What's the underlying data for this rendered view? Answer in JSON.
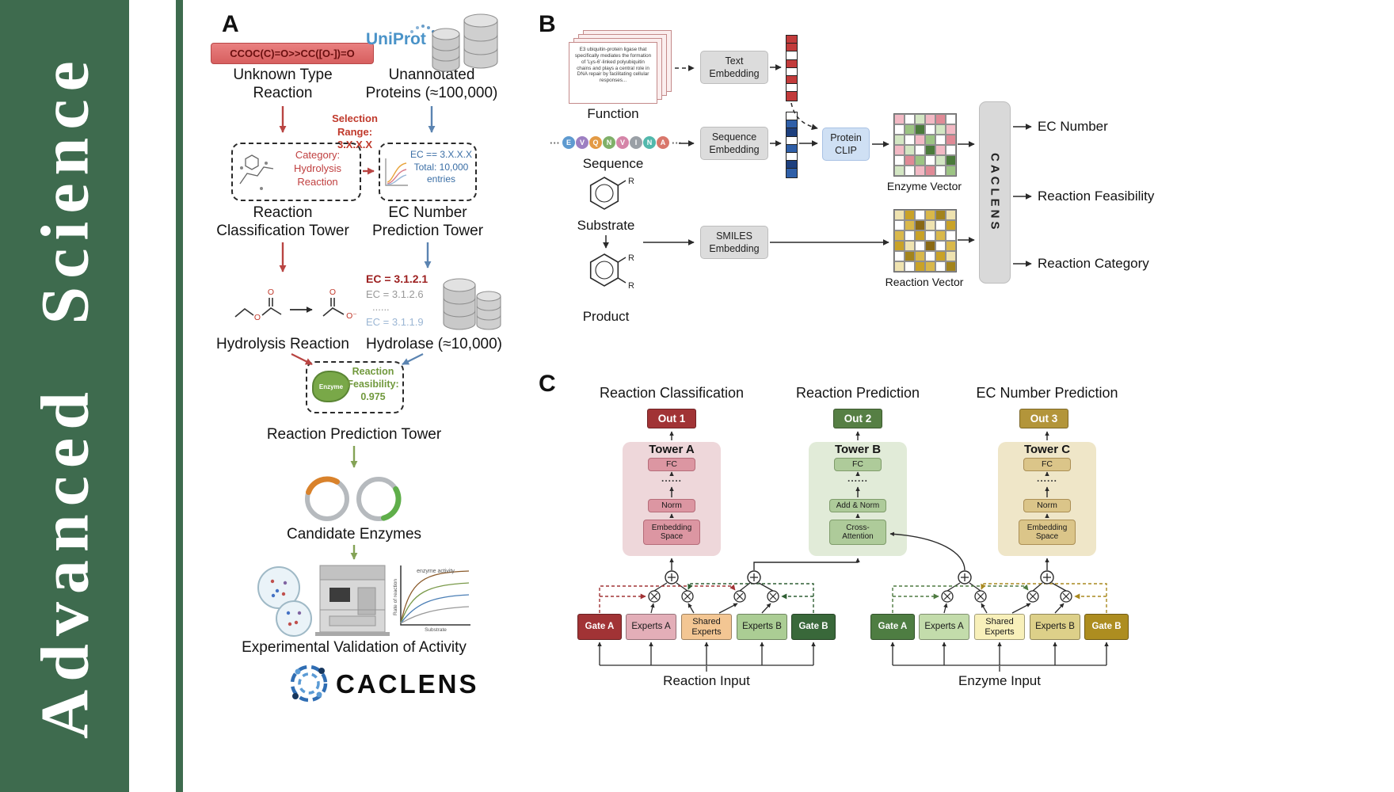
{
  "journal": {
    "name": "Advanced Science"
  },
  "panelA": {
    "label": "A",
    "smiles_reaction": "CCOC(C)=O>>CC([O-])=O",
    "unknown_reaction": "Unknown Type\nReaction",
    "uniprot": "UniProt",
    "unannotated_proteins": "Unannotated\nProteins (≈100,000)",
    "selection_range": "Selection\nRange:\n3.X.X.X",
    "category_box": "Category:\nHydrolysis\nReaction",
    "ec_range_box": "EC == 3.X.X.X\nTotal: 10,000\nentries",
    "classification_tower": "Reaction\nClassification Tower",
    "ec_prediction_tower": "EC Number\nPrediction Tower",
    "hydrolysis_reaction": "Hydrolysis Reaction",
    "ec_items": [
      "EC = 3.1.2.1",
      "EC = 3.1.2.6",
      "......",
      "EC = 3.1.1.9"
    ],
    "hydrolase": "Hydrolase (≈10,000)",
    "enzyme": "Enzyme",
    "feasibility": "Reaction\nFeasibility:\n0.975",
    "prediction_tower": "Reaction Prediction Tower",
    "candidate_enzymes": "Candidate Enzymes",
    "validation": "Experimental Validation of Activity",
    "logo_text": "CACLENS",
    "atom_o": "O",
    "atom_o_minus": "O⁻",
    "graph_legend": "enzyme activity",
    "graph_ylabel": "Rate of reaction",
    "graph_xlabel": "Substrate"
  },
  "panelB": {
    "label": "B",
    "function_card": "E3 ubiquitin-protein ligase that specifically mediates the formation of 'Lys-6'-linked polyubiquitin chains and plays a central role in DNA repair by facilitating cellular responses...",
    "function": "Function",
    "sequence": "Sequence",
    "substrate": "Substrate",
    "product": "Product",
    "r_label": "R",
    "ellipsis": "···",
    "sequence_letters": [
      {
        "letter": "E",
        "color": "#5e9ad0"
      },
      {
        "letter": "V",
        "color": "#9d7fc2"
      },
      {
        "letter": "Q",
        "color": "#e39a45"
      },
      {
        "letter": "N",
        "color": "#7fb069"
      },
      {
        "letter": "V",
        "color": "#d585a8"
      },
      {
        "letter": "I",
        "color": "#9aa0a6"
      },
      {
        "letter": "N",
        "color": "#52b8ac"
      },
      {
        "letter": "A",
        "color": "#d9776b"
      }
    ],
    "text_embedding": "Text\nEmbedding",
    "sequence_embedding": "Sequence\nEmbedding",
    "smiles_embedding": "SMILES\nEmbedding",
    "protein_clip": "Protein\nCLIP",
    "enzyme_vector": "Enzyme Vector",
    "reaction_vector": "Reaction Vector",
    "caclens": "CACLENS",
    "outputs": [
      "EC Number",
      "Reaction Feasibility",
      "Reaction Category"
    ],
    "text_vector_cells": [
      "#c23b3b",
      "#c23b3b",
      "#ffffff",
      "#c23b3b",
      "#ffffff",
      "#c23b3b",
      "#ffffff",
      "#c23b3b"
    ],
    "seq_vector_cells": [
      "#ffffff",
      "#2f5fa8",
      "#1d3f7e",
      "#ffffff",
      "#2f5fa8",
      "#ffffff",
      "#1d3f7e",
      "#2f5fa8"
    ],
    "enzyme_grid": [
      [
        "#f2b9c4",
        "#ffffff",
        "#d3e6c3",
        "#f2b9c4",
        "#e08a96",
        "#ffffff"
      ],
      [
        "#ffffff",
        "#9cc483",
        "#4a7a3a",
        "#ffffff",
        "#d3e6c3",
        "#f2b9c4"
      ],
      [
        "#d3e6c3",
        "#ffffff",
        "#f2b9c4",
        "#9cc483",
        "#ffffff",
        "#e08a96"
      ],
      [
        "#f2b9c4",
        "#d3e6c3",
        "#ffffff",
        "#4a7a3a",
        "#f2b9c4",
        "#ffffff"
      ],
      [
        "#ffffff",
        "#e08a96",
        "#9cc483",
        "#ffffff",
        "#d3e6c3",
        "#4a7a3a"
      ],
      [
        "#d3e6c3",
        "#ffffff",
        "#f2b9c4",
        "#e08a96",
        "#ffffff",
        "#9cc483"
      ]
    ],
    "reaction_grid": [
      [
        "#efe3b0",
        "#c9a227",
        "#ffffff",
        "#d9b84a",
        "#a3841c",
        "#efe3b0"
      ],
      [
        "#ffffff",
        "#d9b84a",
        "#8a6914",
        "#efe3b0",
        "#ffffff",
        "#c9a227"
      ],
      [
        "#d9b84a",
        "#ffffff",
        "#c9a227",
        "#ffffff",
        "#d9b84a",
        "#ffffff"
      ],
      [
        "#c9a227",
        "#efe3b0",
        "#ffffff",
        "#8a6914",
        "#ffffff",
        "#d9b84a"
      ],
      [
        "#ffffff",
        "#a3841c",
        "#d9b84a",
        "#ffffff",
        "#c9a227",
        "#efe3b0"
      ],
      [
        "#efe3b0",
        "#ffffff",
        "#c9a227",
        "#d9b84a",
        "#ffffff",
        "#a3841c"
      ]
    ]
  },
  "panelC": {
    "label": "C",
    "columns": [
      "Reaction Classification",
      "Reaction Prediction",
      "EC Number Prediction"
    ],
    "outs": [
      "Out 1",
      "Out 2",
      "Out 3"
    ],
    "towers": [
      "Tower A",
      "Tower B",
      "Tower C"
    ],
    "fc": "FC",
    "dots": "......",
    "norm": "Norm",
    "add_norm": "Add & Norm",
    "embedding_space": "Embedding\nSpace",
    "cross_attention": "Cross-\nAttention",
    "gate_a": "Gate A",
    "experts_a": "Experts A",
    "shared_experts": "Shared\nExperts",
    "experts_b": "Experts B",
    "gate_b": "Gate B",
    "reaction_input": "Reaction Input",
    "enzyme_input": "Enzyme Input"
  }
}
